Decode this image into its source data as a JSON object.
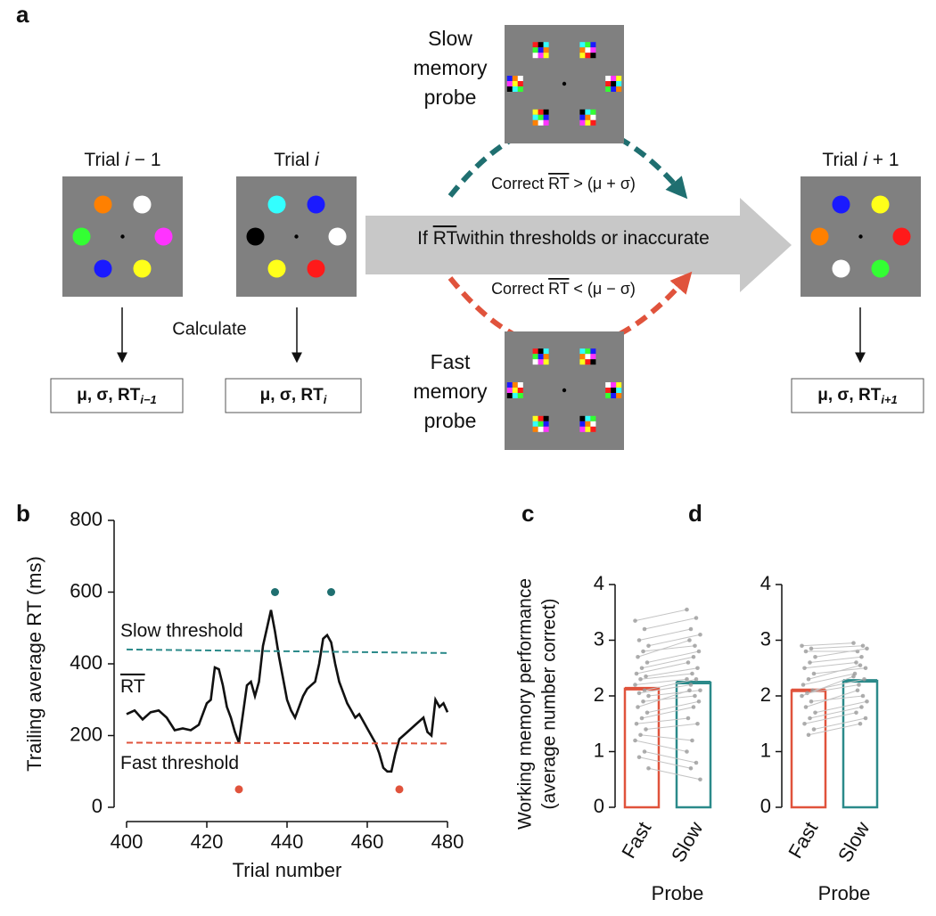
{
  "diagram": {
    "panel": "a",
    "trials": [
      {
        "label": [
          "Trial ",
          "i",
          " − 1"
        ],
        "result": [
          "μ, σ, RT",
          "i−1"
        ]
      },
      {
        "label": [
          "Trial ",
          "i"
        ],
        "result": [
          "μ, σ, RT",
          "i"
        ]
      },
      {
        "label": [
          "Trial ",
          "i",
          " + 1"
        ],
        "result": [
          "μ, σ, RT",
          "i+1"
        ]
      }
    ],
    "calculate": "Calculate",
    "slow_probe": [
      "Slow",
      "memory",
      "probe"
    ],
    "fast_probe": [
      "Fast",
      "memory",
      "probe"
    ],
    "slow_condition": [
      "Correct ",
      "RT",
      " > (μ + σ)"
    ],
    "fast_condition": [
      "Correct ",
      "RT",
      " < (μ − σ)"
    ],
    "default_path": [
      "If ",
      "RT",
      "within thresholds or inaccurate"
    ]
  },
  "chart_data": [
    {
      "type": "line",
      "panel": "b",
      "xlabel": "Trial number",
      "ylabel": "Trailing average RT (ms)",
      "xlim": [
        400,
        480
      ],
      "xticks": [
        400,
        420,
        440,
        460,
        480
      ],
      "ylim": [
        0,
        800
      ],
      "yticks": [
        0,
        200,
        400,
        600,
        800
      ],
      "series": [
        {
          "name": "RT",
          "color": "#111111",
          "style": "solid",
          "x": [
            400,
            402,
            404,
            406,
            408,
            410,
            412,
            414,
            416,
            418,
            420,
            421,
            422,
            423,
            424,
            425,
            426,
            427,
            428,
            429,
            430,
            431,
            432,
            433,
            434,
            435,
            436,
            437,
            438,
            439,
            440,
            441,
            442,
            443,
            444,
            445,
            446,
            447,
            448,
            449,
            450,
            451,
            452,
            453,
            454,
            455,
            456,
            457,
            458,
            459,
            460,
            462,
            463,
            464,
            465,
            466,
            467,
            468,
            469,
            470,
            472,
            474,
            475,
            476,
            477,
            478,
            479,
            480
          ],
          "values": [
            260,
            270,
            245,
            265,
            270,
            250,
            215,
            220,
            215,
            230,
            290,
            300,
            390,
            385,
            340,
            280,
            250,
            210,
            180,
            260,
            340,
            350,
            310,
            350,
            450,
            500,
            550,
            490,
            420,
            360,
            300,
            270,
            250,
            280,
            310,
            330,
            340,
            350,
            400,
            470,
            480,
            460,
            400,
            350,
            320,
            290,
            270,
            250,
            260,
            240,
            220,
            180,
            150,
            110,
            100,
            100,
            150,
            190,
            200,
            210,
            230,
            250,
            210,
            200,
            300,
            280,
            290,
            265
          ]
        },
        {
          "name": "Slow threshold",
          "color": "#2b8a8a",
          "style": "dashed",
          "x": [
            400,
            480
          ],
          "values": [
            440,
            430
          ]
        },
        {
          "name": "Fast threshold",
          "color": "#e0533c",
          "style": "dashed",
          "x": [
            400,
            480
          ],
          "values": [
            180,
            178
          ]
        },
        {
          "color": "#1f6f70",
          "style": "dots",
          "x": [
            437,
            451
          ],
          "values": [
            600,
            600
          ]
        },
        {
          "color": "#e0533c",
          "style": "dots",
          "x": [
            428,
            468
          ],
          "values": [
            50,
            50
          ]
        }
      ]
    },
    {
      "type": "bar",
      "panel": "c",
      "ylabel": [
        "Working memory performance",
        "(average number correct)"
      ],
      "xlabel": "Probe",
      "categories": [
        "Fast",
        "Slow"
      ],
      "values": [
        2.13,
        2.24
      ],
      "colors": [
        "#e0533c",
        "#2b8a8a"
      ],
      "ylim": [
        0,
        4
      ],
      "yticks": [
        0,
        1,
        2,
        3,
        4
      ],
      "subjects": [
        [
          3.35,
          3.55
        ],
        [
          3.2,
          3.4
        ],
        [
          3.0,
          3.2
        ],
        [
          2.9,
          3.1
        ],
        [
          2.8,
          2.9
        ],
        [
          2.7,
          3.0
        ],
        [
          2.6,
          2.8
        ],
        [
          2.5,
          2.7
        ],
        [
          2.4,
          2.6
        ],
        [
          2.35,
          2.5
        ],
        [
          2.3,
          2.4
        ],
        [
          2.2,
          2.3
        ],
        [
          2.1,
          2.3
        ],
        [
          2.05,
          2.2
        ],
        [
          2.0,
          2.1
        ],
        [
          1.9,
          2.0
        ],
        [
          1.8,
          2.1
        ],
        [
          1.7,
          1.9
        ],
        [
          1.6,
          1.8
        ],
        [
          1.5,
          1.6
        ],
        [
          1.4,
          1.5
        ],
        [
          1.3,
          1.2
        ],
        [
          1.2,
          1.0
        ],
        [
          1.0,
          0.8
        ],
        [
          0.9,
          0.7
        ],
        [
          0.7,
          0.5
        ]
      ]
    },
    {
      "type": "bar",
      "panel": "d",
      "xlabel": "Probe",
      "categories": [
        "Fast",
        "Slow"
      ],
      "values": [
        2.1,
        2.27
      ],
      "colors": [
        "#e0533c",
        "#2b8a8a"
      ],
      "ylim": [
        0,
        4
      ],
      "yticks": [
        0,
        1,
        2,
        3,
        4
      ],
      "subjects": [
        [
          2.9,
          2.95
        ],
        [
          2.85,
          2.9
        ],
        [
          2.8,
          2.8
        ],
        [
          2.7,
          2.85
        ],
        [
          2.6,
          2.7
        ],
        [
          2.5,
          2.6
        ],
        [
          2.4,
          2.5
        ],
        [
          2.3,
          2.55
        ],
        [
          2.2,
          2.4
        ],
        [
          2.1,
          2.3
        ],
        [
          2.05,
          2.2
        ],
        [
          2.0,
          2.35
        ],
        [
          1.9,
          2.0
        ],
        [
          1.8,
          2.1
        ],
        [
          1.7,
          1.9
        ],
        [
          1.6,
          1.8
        ],
        [
          1.5,
          1.7
        ],
        [
          1.4,
          1.6
        ],
        [
          1.3,
          1.5
        ]
      ]
    }
  ]
}
